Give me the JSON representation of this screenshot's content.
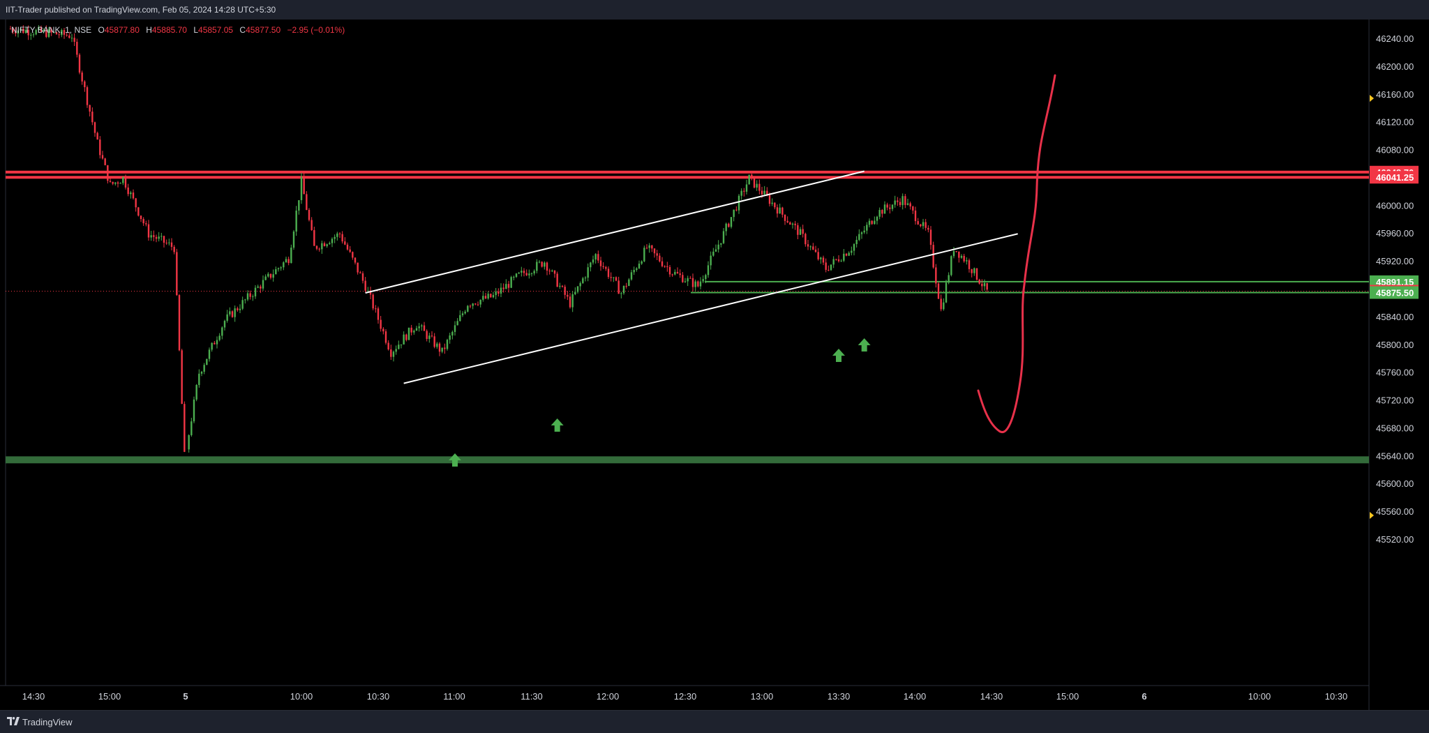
{
  "publish_line": "IIT-Trader published on TradingView.com, Feb 05, 2024 14:28 UTC+5:30",
  "legend": {
    "symbol": "NIFTY BANK, 1, NSE",
    "open_key": "O",
    "open": "45877.80",
    "high_key": "H",
    "high": "45885.70",
    "low_key": "L",
    "low": "45857.05",
    "close_key": "C",
    "close": "45877.50",
    "change": "−2.95 (−0.01%)"
  },
  "price_axis": {
    "ticks": [
      "46240.00",
      "46200.00",
      "46160.00",
      "46120.00",
      "46080.00",
      "46000.00",
      "45960.00",
      "45920.00",
      "45840.00",
      "45800.00",
      "45760.00",
      "45720.00",
      "45680.00",
      "45640.00",
      "45600.00",
      "45560.00",
      "45520.00"
    ],
    "tags": [
      {
        "label": "46048.70",
        "price": 46048.7,
        "color": "#f23645"
      },
      {
        "label": "46041.25",
        "price": 46041.25,
        "color": "#f23645"
      },
      {
        "label": "45891.15",
        "price": 45891.15,
        "color": "#4caf50"
      },
      {
        "label": "45877.50",
        "price": 45877.5,
        "color": "#f23645"
      },
      {
        "label": "45875.50",
        "price": 45875.5,
        "color": "#4caf50"
      }
    ]
  },
  "time_axis": {
    "labels": [
      "14:30",
      "15:00",
      "5",
      "10:00",
      "10:30",
      "11:00",
      "11:30",
      "12:00",
      "12:30",
      "13:00",
      "13:30",
      "14:00",
      "14:30",
      "15:00",
      "6",
      "10:00",
      "10:30"
    ]
  },
  "colors": {
    "up": "#4caf50",
    "down": "#f23645",
    "resistance": "#f23645",
    "support": "#336b3a",
    "drawing": "#ffffff",
    "projection": "#e8314a"
  },
  "footer": {
    "brand": "TradingView"
  },
  "chart_data": {
    "type": "candlestick",
    "symbol": "NIFTY BANK",
    "interval": "1",
    "exchange": "NSE",
    "y_range": [
      45510,
      46265
    ],
    "last_price": 45877.5,
    "ohlc_last": {
      "open": 45877.8,
      "high": 45885.7,
      "low": 45857.05,
      "close": 45877.5
    },
    "price_path": [
      [
        "14:20",
        46255
      ],
      [
        "14:45",
        46245
      ],
      [
        "14:55",
        46090
      ],
      [
        "15:00",
        46030
      ],
      [
        "15:05",
        46040
      ],
      [
        "15:15",
        45960
      ],
      [
        "15:25",
        45940
      ],
      [
        "15:29",
        45640
      ],
      [
        "09:15",
        45650
      ],
      [
        "09:20",
        45760
      ],
      [
        "09:30",
        45835
      ],
      [
        "09:45",
        45890
      ],
      [
        "09:55",
        45925
      ],
      [
        "10:00",
        46035
      ],
      [
        "10:05",
        45940
      ],
      [
        "10:15",
        45960
      ],
      [
        "10:25",
        45885
      ],
      [
        "10:35",
        45790
      ],
      [
        "10:45",
        45830
      ],
      [
        "10:55",
        45790
      ],
      [
        "11:05",
        45860
      ],
      [
        "11:15",
        45870
      ],
      [
        "11:25",
        45900
      ],
      [
        "11:35",
        45920
      ],
      [
        "11:45",
        45860
      ],
      [
        "11:55",
        45930
      ],
      [
        "12:05",
        45875
      ],
      [
        "12:15",
        45940
      ],
      [
        "12:25",
        45905
      ],
      [
        "12:35",
        45885
      ],
      [
        "12:45",
        45960
      ],
      [
        "12:55",
        46040
      ],
      [
        "13:05",
        46000
      ],
      [
        "13:15",
        45960
      ],
      [
        "13:25",
        45910
      ],
      [
        "13:35",
        45940
      ],
      [
        "13:45",
        45990
      ],
      [
        "13:55",
        46010
      ],
      [
        "14:05",
        45960
      ],
      [
        "14:10",
        45850
      ],
      [
        "14:15",
        45940
      ],
      [
        "14:20",
        45920
      ],
      [
        "14:28",
        45877
      ]
    ],
    "horizontal_levels": [
      {
        "price": 46048.7,
        "color": "red"
      },
      {
        "price": 46041.25,
        "color": "red"
      },
      {
        "price": 45891.15,
        "color": "green"
      },
      {
        "price": 45875.5,
        "color": "green"
      },
      {
        "price": 45635,
        "color": "green",
        "style": "zone"
      }
    ],
    "channel": {
      "upper": [
        [
          "10:25",
          45875
        ],
        [
          "13:40",
          46050
        ]
      ],
      "lower": [
        [
          "10:40",
          45745
        ],
        [
          "14:40",
          45960
        ]
      ]
    },
    "arrows_up": [
      "11:00",
      "11:40",
      "13:30",
      "13:40"
    ]
  }
}
